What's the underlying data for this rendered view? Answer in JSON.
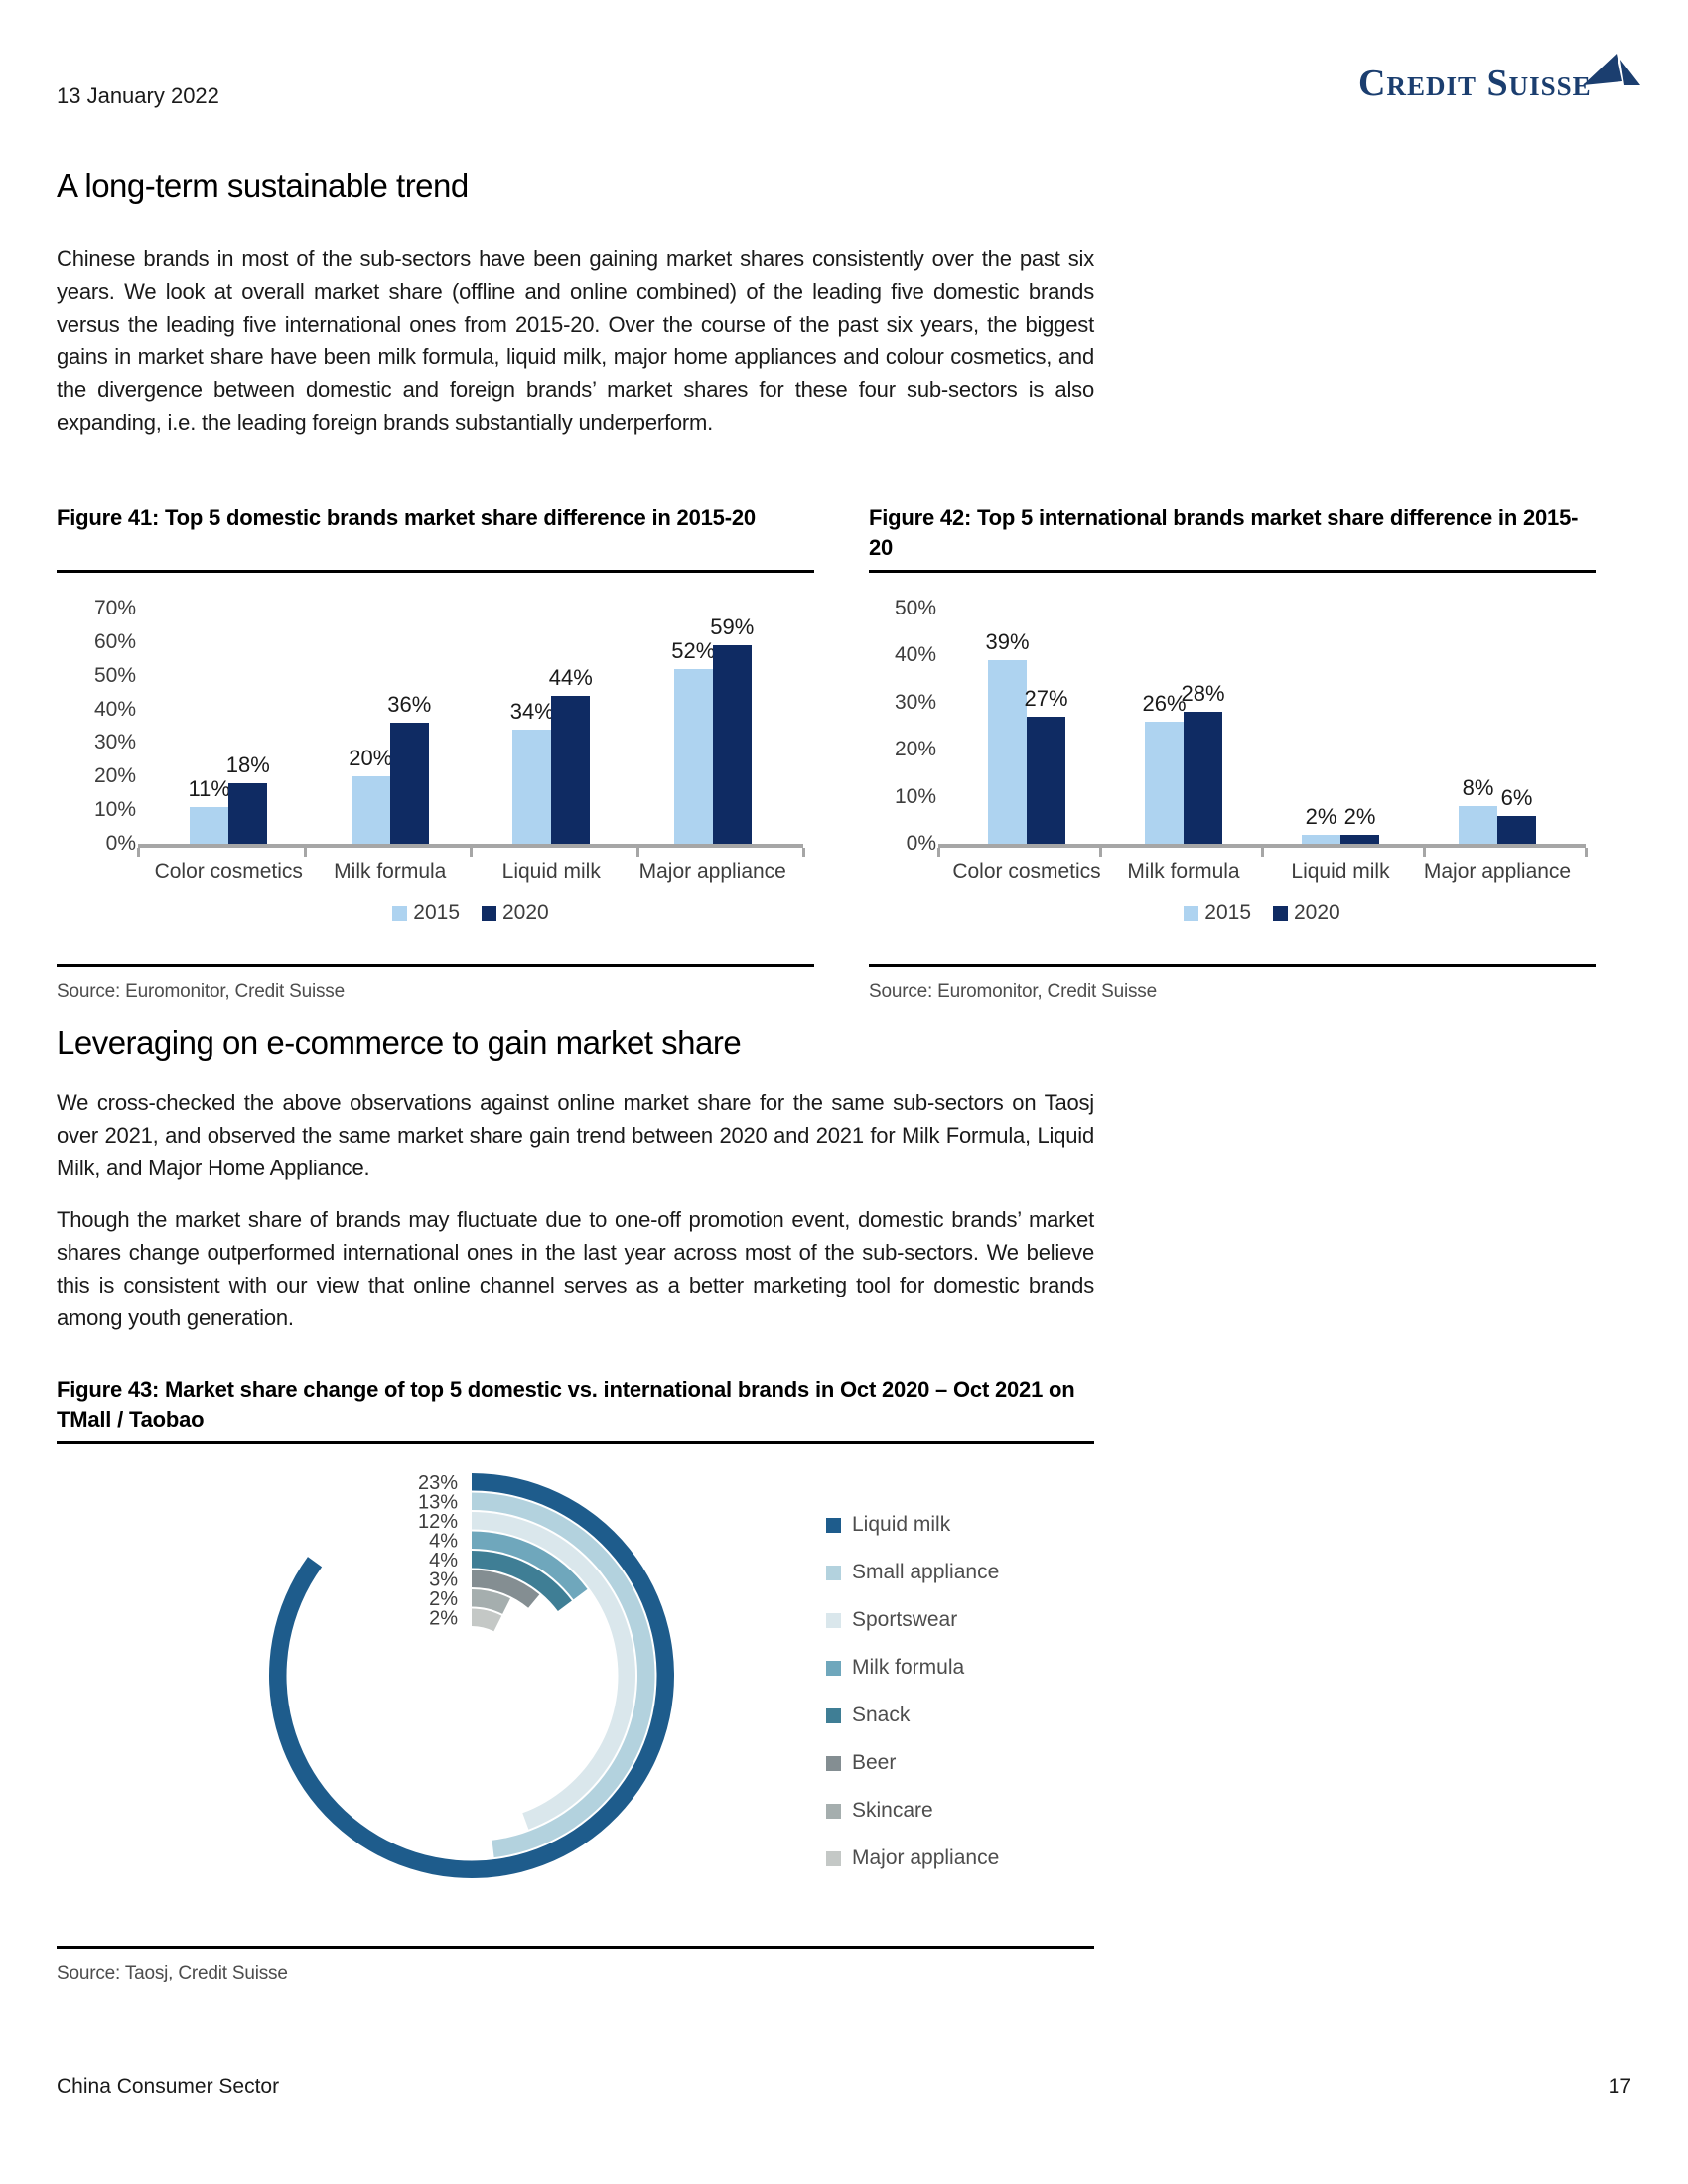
{
  "header": {
    "date": "13 January 2022",
    "logo": "Credit Suisse"
  },
  "sections": [
    {
      "heading": "A long-term sustainable trend",
      "body": "Chinese brands in most of the sub-sectors have been gaining market shares consistently over the past six years. We look at overall market share (offline and online combined) of the leading five domestic brands versus the leading five international ones from 2015-20. Over the course of the past six years, the biggest gains in market share have been milk formula, liquid milk, major home appliances and colour cosmetics, and the divergence between domestic and foreign brands’ market shares for these four sub-sectors is also expanding, i.e. the leading foreign brands substantially underperform."
    },
    {
      "heading": "Leveraging on e-commerce to gain market share",
      "paragraphs": [
        "We cross-checked the above observations against online market share for the same sub-sectors on Taosj over 2021, and observed the same market share gain trend between 2020 and 2021 for Milk Formula, Liquid Milk, and Major Home Appliance.",
        "Though the market share of brands may fluctuate due to one-off promotion event, domestic brands’ market shares change outperformed international ones in the last year across most of the sub-sectors. We believe this is consistent with our view that online channel serves as a better marketing tool for domestic brands among youth generation."
      ]
    }
  ],
  "chart_data": [
    {
      "id": "figure41",
      "type": "bar",
      "title": "Figure 41: Top 5 domestic brands market share difference in 2015-20",
      "categories": [
        "Color cosmetics",
        "Milk formula",
        "Liquid milk",
        "Major appliance"
      ],
      "series": [
        {
          "name": "2015",
          "color": "#AED3F0",
          "values": [
            11,
            20,
            34,
            52
          ]
        },
        {
          "name": "2020",
          "color": "#0F2B63",
          "values": [
            18,
            36,
            44,
            59
          ]
        }
      ],
      "ylim": [
        0,
        70
      ],
      "ytick_step": 10,
      "unit": "%",
      "grid": false,
      "legend_position": "bottom",
      "source": "Source: Euromonitor, Credit Suisse"
    },
    {
      "id": "figure42",
      "type": "bar",
      "title": "Figure 42: Top 5 international brands market share difference in 2015-20",
      "categories": [
        "Color cosmetics",
        "Milk formula",
        "Liquid milk",
        "Major appliance"
      ],
      "series": [
        {
          "name": "2015",
          "color": "#AED3F0",
          "values": [
            39,
            26,
            2,
            8
          ]
        },
        {
          "name": "2020",
          "color": "#0F2B63",
          "values": [
            27,
            28,
            2,
            6
          ]
        }
      ],
      "ylim": [
        0,
        50
      ],
      "ytick_step": 10,
      "unit": "%",
      "grid": false,
      "legend_position": "bottom",
      "source": "Source: Euromonitor, Credit Suisse"
    },
    {
      "id": "figure43",
      "type": "radial-bar",
      "title": "Figure 43: Market share change of top 5 domestic vs. international brands in Oct 2020 – Oct 2021 on TMall / Taobao",
      "items": [
        {
          "label": "Liquid milk",
          "value": 23,
          "color": "#1E5C8C"
        },
        {
          "label": "Small appliance",
          "value": 13,
          "color": "#B3D2DE"
        },
        {
          "label": "Sportswear",
          "value": 12,
          "color": "#DAE7EC"
        },
        {
          "label": "Milk formula",
          "value": 4,
          "color": "#6FA7BC"
        },
        {
          "label": "Snack",
          "value": 4,
          "color": "#3F7E95"
        },
        {
          "label": "Beer",
          "value": 3,
          "color": "#848E92"
        },
        {
          "label": "Skincare",
          "value": 2,
          "color": "#A5AEAE"
        },
        {
          "label": "Major appliance",
          "value": 2,
          "color": "#C4C8C6"
        }
      ],
      "unit": "%",
      "start_angle_deg": 0,
      "max_angle_deg": 306,
      "legend_position": "right",
      "source": "Source: Taosj, Credit Suisse"
    }
  ],
  "footer": {
    "left": "China Consumer Sector",
    "page": "17"
  }
}
